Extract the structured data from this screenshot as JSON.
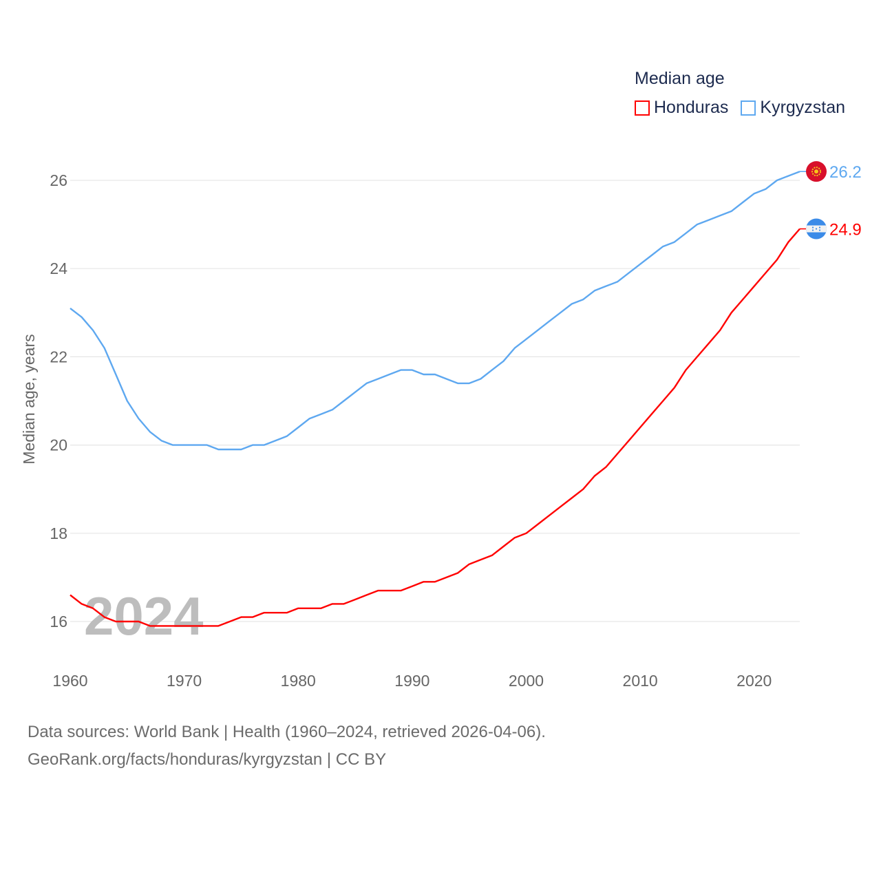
{
  "chart_data": {
    "type": "line",
    "title": "Median age",
    "xlabel": "",
    "ylabel": "Median age, years",
    "xlim": [
      1960,
      2024
    ],
    "ylim": [
      15,
      26.5
    ],
    "xticks": [
      "1960",
      "1970",
      "1980",
      "1990",
      "2000",
      "2010",
      "2020"
    ],
    "yticks": [
      "16",
      "18",
      "20",
      "22",
      "24",
      "26"
    ],
    "grid": true,
    "legend_placement": "top-right",
    "year_watermark": "2024",
    "x": [
      1960,
      1961,
      1962,
      1963,
      1964,
      1965,
      1966,
      1967,
      1968,
      1969,
      1970,
      1971,
      1972,
      1973,
      1974,
      1975,
      1976,
      1977,
      1978,
      1979,
      1980,
      1981,
      1982,
      1983,
      1984,
      1985,
      1986,
      1987,
      1988,
      1989,
      1990,
      1991,
      1992,
      1993,
      1994,
      1995,
      1996,
      1997,
      1998,
      1999,
      2000,
      2001,
      2002,
      2003,
      2004,
      2005,
      2006,
      2007,
      2008,
      2009,
      2010,
      2011,
      2012,
      2013,
      2014,
      2015,
      2016,
      2017,
      2018,
      2019,
      2020,
      2021,
      2022,
      2023,
      2024
    ],
    "series": [
      {
        "name": "Honduras",
        "color": "#ff0000",
        "end_label": "24.9",
        "values": [
          16.6,
          16.4,
          16.3,
          16.1,
          16.0,
          16.0,
          16.0,
          15.9,
          15.9,
          15.9,
          15.9,
          15.9,
          15.9,
          15.9,
          16.0,
          16.1,
          16.1,
          16.2,
          16.2,
          16.2,
          16.3,
          16.3,
          16.3,
          16.4,
          16.4,
          16.5,
          16.6,
          16.7,
          16.7,
          16.7,
          16.8,
          16.9,
          16.9,
          17.0,
          17.1,
          17.3,
          17.4,
          17.5,
          17.7,
          17.9,
          18.0,
          18.2,
          18.4,
          18.6,
          18.8,
          19.0,
          19.3,
          19.5,
          19.8,
          20.1,
          20.4,
          20.7,
          21.0,
          21.3,
          21.7,
          22.0,
          22.3,
          22.6,
          23.0,
          23.3,
          23.6,
          23.9,
          24.2,
          24.6,
          24.9
        ]
      },
      {
        "name": "Kyrgyzstan",
        "color": "#5ea8f0",
        "end_label": "26.2",
        "values": [
          23.1,
          22.9,
          22.6,
          22.2,
          21.6,
          21.0,
          20.6,
          20.3,
          20.1,
          20.0,
          20.0,
          20.0,
          20.0,
          19.9,
          19.9,
          19.9,
          20.0,
          20.0,
          20.1,
          20.2,
          20.4,
          20.6,
          20.7,
          20.8,
          21.0,
          21.2,
          21.4,
          21.5,
          21.6,
          21.7,
          21.7,
          21.6,
          21.6,
          21.5,
          21.4,
          21.4,
          21.5,
          21.7,
          21.9,
          22.2,
          22.4,
          22.6,
          22.8,
          23.0,
          23.2,
          23.3,
          23.5,
          23.6,
          23.7,
          23.9,
          24.1,
          24.3,
          24.5,
          24.6,
          24.8,
          25.0,
          25.1,
          25.2,
          25.3,
          25.5,
          25.7,
          25.8,
          26.0,
          26.1,
          26.2
        ]
      }
    ]
  },
  "source": {
    "line1": "Data sources: World Bank | Health (1960–2024, retrieved 2026-04-06).",
    "line2": "GeoRank.org/facts/honduras/kyrgyzstan | CC BY"
  }
}
